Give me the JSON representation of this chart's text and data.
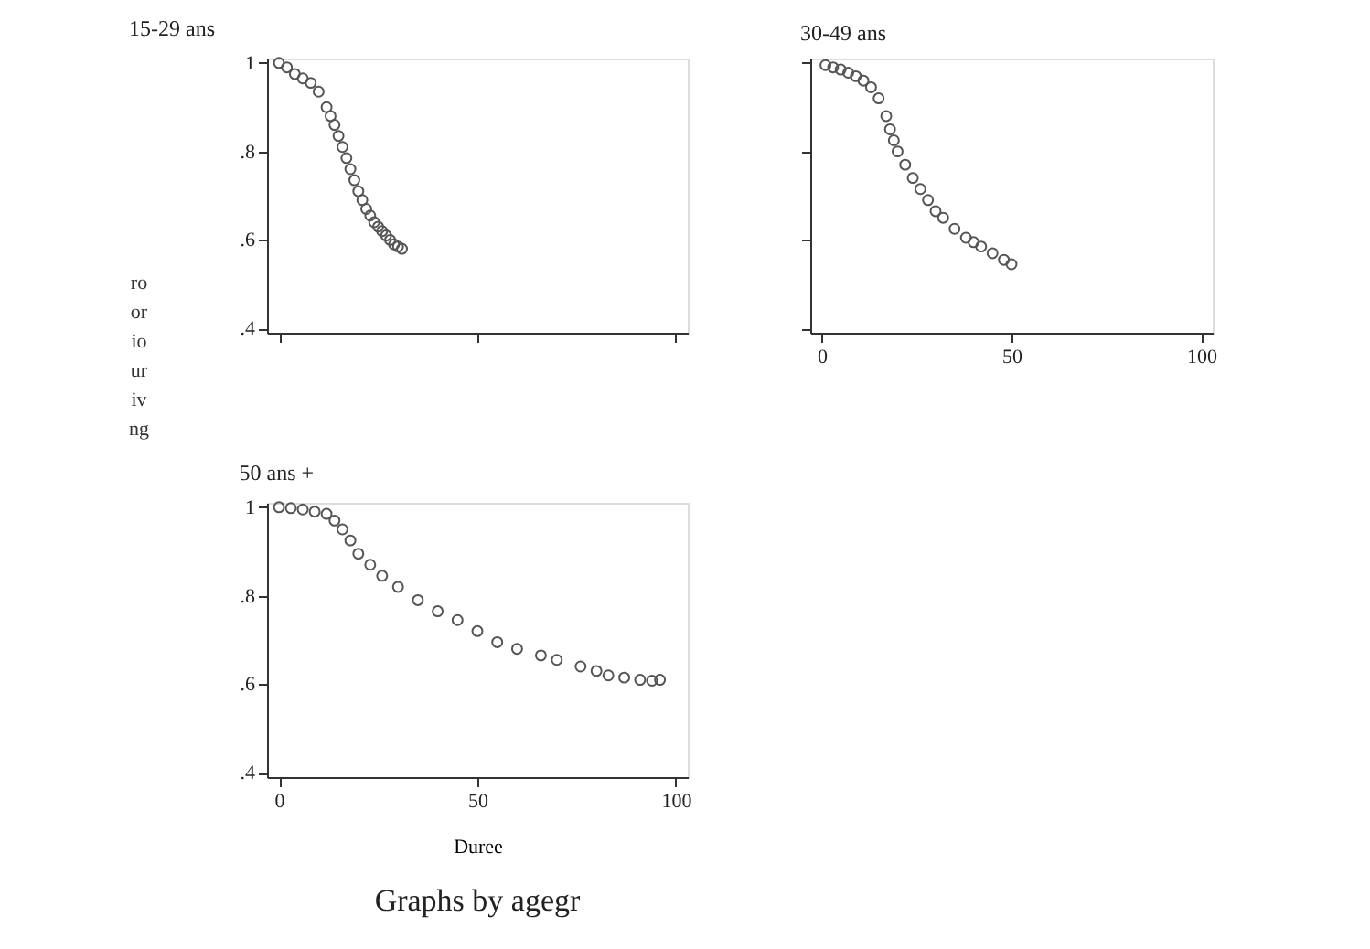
{
  "chart_data": [
    {
      "type": "scatter",
      "title": "15-29 ans",
      "ylabel": "ro or io ur iv ng",
      "marker": "circle",
      "grid": false,
      "tick_labels": "y",
      "xlim": [
        -3,
        103
      ],
      "ylim": [
        0.39,
        1.01
      ],
      "xticks": [
        0,
        50,
        100
      ],
      "yticks": [
        {
          "value": 0.4,
          "label": ".4"
        },
        {
          "value": 0.6,
          "label": ".6"
        },
        {
          "value": 0.8,
          "label": ".8"
        },
        {
          "value": 1,
          "label": "1"
        }
      ],
      "x": [
        0,
        2,
        4,
        6,
        8,
        10,
        12,
        13,
        14,
        15,
        16,
        17,
        18,
        19,
        20,
        21,
        22,
        23,
        24,
        25,
        26,
        27,
        28,
        29,
        30,
        31
      ],
      "series": [
        {
          "color": "#555555",
          "values": [
            1.0,
            0.99,
            0.975,
            0.965,
            0.955,
            0.935,
            0.9,
            0.88,
            0.86,
            0.835,
            0.81,
            0.785,
            0.76,
            0.735,
            0.71,
            0.69,
            0.67,
            0.655,
            0.64,
            0.63,
            0.62,
            0.61,
            0.6,
            0.59,
            0.585,
            0.58
          ]
        }
      ]
    },
    {
      "type": "scatter",
      "title": "30-49 ans",
      "marker": "circle",
      "grid": false,
      "tick_labels": "x",
      "xlim": [
        -3,
        103
      ],
      "ylim": [
        0.39,
        1.01
      ],
      "xticks": [
        0,
        50,
        100
      ],
      "yticks": [
        0.4,
        0.6,
        0.8,
        1
      ],
      "x": [
        1,
        3,
        5,
        7,
        9,
        11,
        13,
        15,
        17,
        18,
        19,
        20,
        22,
        24,
        26,
        28,
        30,
        32,
        35,
        38,
        40,
        42,
        45,
        48,
        50
      ],
      "series": [
        {
          "color": "#555555",
          "values": [
            0.995,
            0.99,
            0.985,
            0.978,
            0.97,
            0.96,
            0.945,
            0.92,
            0.88,
            0.85,
            0.825,
            0.8,
            0.77,
            0.74,
            0.715,
            0.69,
            0.665,
            0.65,
            0.625,
            0.605,
            0.595,
            0.585,
            0.57,
            0.555,
            0.545
          ]
        }
      ]
    },
    {
      "type": "scatter",
      "title": "50 ans +",
      "xlabel": "Duree",
      "annotations": [
        "Graphs by agegr"
      ],
      "marker": "circle",
      "grid": false,
      "xlim": [
        -3,
        103
      ],
      "ylim": [
        0.39,
        1.01
      ],
      "xticks": [
        0,
        50,
        100
      ],
      "yticks": [
        {
          "value": 0.4,
          "label": ".4"
        },
        {
          "value": 0.6,
          "label": ".6"
        },
        {
          "value": 0.8,
          "label": ".8"
        },
        {
          "value": 1,
          "label": "1"
        }
      ],
      "x": [
        0,
        3,
        6,
        9,
        12,
        14,
        16,
        18,
        20,
        23,
        26,
        30,
        35,
        40,
        45,
        50,
        55,
        60,
        66,
        70,
        76,
        80,
        83,
        87,
        91,
        94,
        96
      ],
      "series": [
        {
          "color": "#555555",
          "values": [
            1.0,
            0.998,
            0.995,
            0.99,
            0.985,
            0.97,
            0.95,
            0.925,
            0.895,
            0.87,
            0.845,
            0.82,
            0.79,
            0.765,
            0.745,
            0.72,
            0.695,
            0.68,
            0.665,
            0.655,
            0.64,
            0.63,
            0.62,
            0.615,
            0.61,
            0.608,
            0.61
          ]
        }
      ]
    }
  ]
}
